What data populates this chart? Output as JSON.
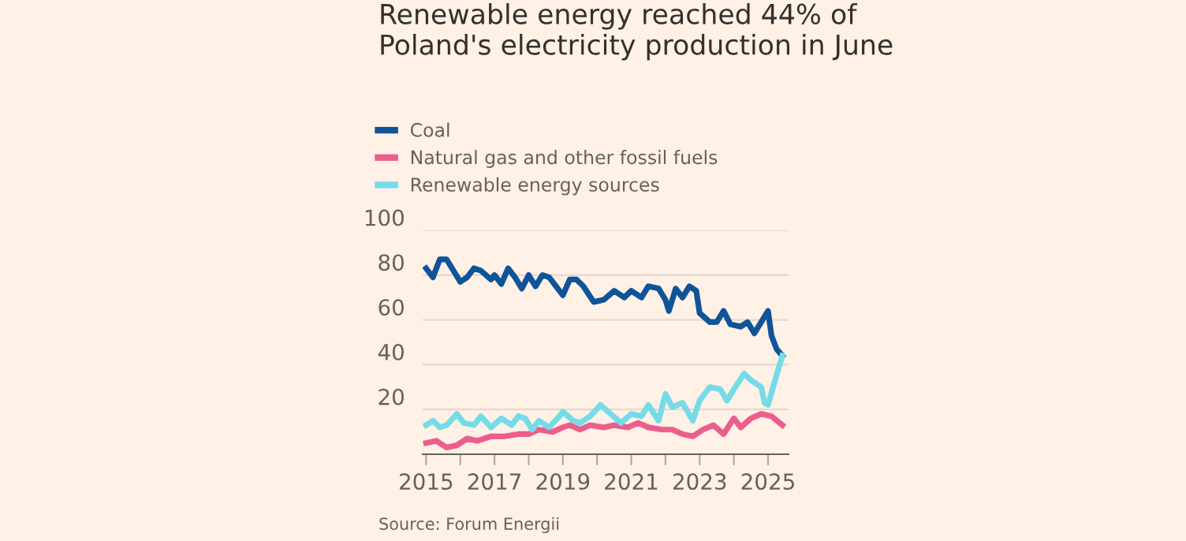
{
  "chart_data": {
    "type": "line",
    "title": "Renewable energy reached 44% of Poland's electricity production in June",
    "annotations": [
      "Source: Forum Energii"
    ],
    "series": [
      {
        "name": "Coal",
        "color": "#0f5499",
        "x": [
          2015.0,
          2015.2,
          2015.4,
          2015.6,
          2015.8,
          2016.0,
          2016.2,
          2016.4,
          2016.6,
          2016.9,
          2017.0,
          2017.2,
          2017.4,
          2017.6,
          2017.8,
          2018.0,
          2018.2,
          2018.4,
          2018.6,
          2018.8,
          2019.0,
          2019.2,
          2019.4,
          2019.6,
          2019.9,
          2020.2,
          2020.5,
          2020.8,
          2021.0,
          2021.3,
          2021.5,
          2021.8,
          2022.0,
          2022.1,
          2022.3,
          2022.5,
          2022.7,
          2022.9,
          2023.0,
          2023.3,
          2023.5,
          2023.7,
          2023.9,
          2024.2,
          2024.4,
          2024.6,
          2024.8,
          2025.0,
          2025.1,
          2025.25,
          2025.42
        ],
        "values": [
          83,
          79,
          87,
          87,
          82,
          77,
          79,
          83,
          82,
          78,
          80,
          76,
          83,
          79,
          74,
          80,
          75,
          80,
          79,
          75,
          71,
          78,
          78,
          75,
          68,
          69,
          73,
          70,
          73,
          70,
          75,
          74,
          69,
          64,
          74,
          70,
          75,
          73,
          63,
          59,
          59,
          64,
          58,
          57,
          59,
          54,
          59,
          64,
          53,
          47,
          44
        ]
      },
      {
        "name": "Natural gas and other fossil fuels",
        "color": "#eb5e8d",
        "x": [
          2015.0,
          2015.3,
          2015.6,
          2015.9,
          2016.2,
          2016.5,
          2016.9,
          2017.3,
          2017.7,
          2018.0,
          2018.3,
          2018.7,
          2019.0,
          2019.2,
          2019.5,
          2019.8,
          2020.2,
          2020.5,
          2020.9,
          2021.2,
          2021.5,
          2021.9,
          2022.2,
          2022.5,
          2022.8,
          2023.1,
          2023.4,
          2023.7,
          2024.0,
          2024.2,
          2024.5,
          2024.8,
          2025.1,
          2025.42
        ],
        "values": [
          5,
          6,
          3,
          4,
          7,
          6,
          8,
          8,
          9,
          9,
          11,
          10,
          12,
          13,
          11,
          13,
          12,
          13,
          12,
          14,
          12,
          11,
          11,
          9,
          8,
          11,
          13,
          9,
          16,
          12,
          16,
          18,
          17,
          13
        ]
      },
      {
        "name": "Renewable energy sources",
        "color": "#75dbe8",
        "x": [
          2015.0,
          2015.2,
          2015.4,
          2015.6,
          2015.9,
          2016.1,
          2016.4,
          2016.6,
          2016.9,
          2017.2,
          2017.5,
          2017.7,
          2017.9,
          2018.1,
          2018.3,
          2018.6,
          2018.9,
          2019.0,
          2019.3,
          2019.5,
          2019.8,
          2020.1,
          2020.4,
          2020.7,
          2021.0,
          2021.3,
          2021.5,
          2021.8,
          2022.0,
          2022.2,
          2022.5,
          2022.8,
          2023.0,
          2023.3,
          2023.6,
          2023.8,
          2024.0,
          2024.3,
          2024.5,
          2024.8,
          2024.9,
          2025.0,
          2025.15,
          2025.3,
          2025.42
        ],
        "values": [
          13,
          15,
          12,
          13,
          18,
          14,
          13,
          17,
          12,
          16,
          13,
          17,
          16,
          11,
          15,
          12,
          17,
          19,
          15,
          14,
          17,
          22,
          18,
          14,
          18,
          17,
          22,
          15,
          27,
          21,
          23,
          15,
          24,
          30,
          29,
          24,
          29,
          36,
          33,
          30,
          23,
          22,
          30,
          38,
          44
        ]
      }
    ],
    "xlim": [
      2014.9,
      2025.6
    ],
    "xticks": [
      2015,
      {
        "value": 2016,
        "label": null
      },
      2017,
      {
        "value": 2018,
        "label": null
      },
      2019,
      {
        "value": 2020,
        "label": null
      },
      2021,
      {
        "value": 2022,
        "label": null
      },
      2023,
      {
        "value": 2024,
        "label": null
      },
      2025
    ],
    "ylim": [
      0,
      100
    ],
    "yticks": [
      20,
      40,
      60,
      80,
      100
    ],
    "grid": "y",
    "legend": "top left"
  }
}
